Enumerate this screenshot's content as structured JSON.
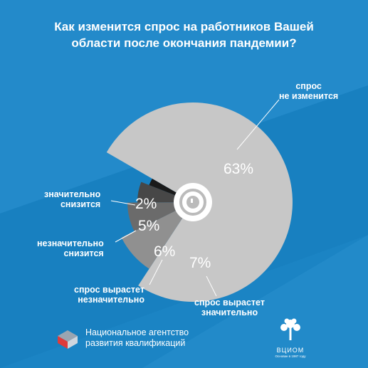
{
  "title_lines": [
    "Как изменится спрос на работников Вашей",
    "области после окончания пандемии?"
  ],
  "chart_data": {
    "type": "pie",
    "title": "Как изменится спрос на работников Вашей области после окончания пандемии?",
    "slices": [
      {
        "label": "спрос не изменится",
        "value": 63,
        "value_label": "63%",
        "color": "#c7c7c7"
      },
      {
        "label": "спрос вырастет значительно",
        "value": 7,
        "value_label": "7%",
        "color": "#909090"
      },
      {
        "label": "спрос вырастет незначительно",
        "value": 6,
        "value_label": "6%",
        "color": "#6b6b6b"
      },
      {
        "label": "незначительно снизится",
        "value": 5,
        "value_label": "5%",
        "color": "#474747"
      },
      {
        "label": "значительно снизится",
        "value": 2,
        "value_label": "2%",
        "color": "#1a1a1a"
      }
    ]
  },
  "labels": {
    "no_change": [
      "спрос",
      "не изменится"
    ],
    "grow_much": [
      "спрос вырастет",
      "значительно"
    ],
    "grow_little": [
      "спрос вырастет",
      "незначительно"
    ],
    "drop_little": [
      "незначительно",
      "снизится"
    ],
    "drop_much": [
      "значительно",
      "снизится"
    ]
  },
  "footer": {
    "agency_lines": [
      "Национальное агентство",
      "развития квалификаций"
    ],
    "brand": "ВЦИОМ",
    "since": "Основан в 1987 году"
  }
}
